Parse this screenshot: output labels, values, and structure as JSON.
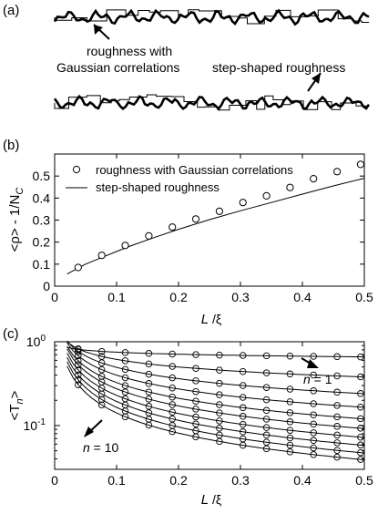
{
  "panels": {
    "a": {
      "tag": "(a)",
      "label_gaussian": [
        "roughness with",
        "Gaussian correlations"
      ],
      "label_step": "step-shaped roughness"
    },
    "b": {
      "tag": "(b)",
      "xlabel_main": "L",
      "xlabel_rest": " /ξ",
      "ylabel_main": "<ρ> - 1/N",
      "ylabel_sub": "C",
      "legend": [
        "roughness with Gaussian correlations",
        "step-shaped roughness"
      ]
    },
    "c": {
      "tag": "(c)",
      "xlabel_main": "L",
      "xlabel_rest": " /ξ",
      "ylabel_main": "<T",
      "ylabel_sub": "n",
      "ylabel_end": ">",
      "annot_n1_var": "n",
      "annot_n1_val": " = 1",
      "annot_n10_var": "n",
      "annot_n10_val": " = 10"
    }
  },
  "chart_data": [
    {
      "type": "scatter",
      "panel": "b",
      "xlim": [
        0,
        0.5
      ],
      "ylim": [
        0,
        0.6
      ],
      "xticks": [
        "0",
        "0.1",
        "0.2",
        "0.3",
        "0.4",
        "0.5"
      ],
      "yticks": [
        "0",
        "0.1",
        "0.2",
        "0.3",
        "0.4",
        "0.5"
      ],
      "series": [
        {
          "name": "roughness with Gaussian correlations",
          "style": "open-circles",
          "x": [
            0.038,
            0.076,
            0.114,
            0.152,
            0.19,
            0.228,
            0.266,
            0.304,
            0.342,
            0.38,
            0.418,
            0.456,
            0.494
          ],
          "y": [
            0.085,
            0.14,
            0.185,
            0.228,
            0.268,
            0.305,
            0.34,
            0.38,
            0.41,
            0.448,
            0.488,
            0.52,
            0.553
          ]
        },
        {
          "name": "step-shaped roughness",
          "style": "line",
          "x": [
            0.02,
            0.05,
            0.08,
            0.12,
            0.16,
            0.2,
            0.25,
            0.3,
            0.35,
            0.4,
            0.45,
            0.5
          ],
          "y": [
            0.055,
            0.1,
            0.135,
            0.18,
            0.22,
            0.258,
            0.302,
            0.342,
            0.38,
            0.418,
            0.455,
            0.49
          ]
        }
      ]
    },
    {
      "type": "line",
      "panel": "c",
      "yscale": "log",
      "xlim": [
        0,
        0.5
      ],
      "ylim": [
        0.03,
        1
      ],
      "xticks": [
        "0",
        "0.1",
        "0.2",
        "0.3",
        "0.4",
        "0.5"
      ],
      "yticks": [
        {
          "value": 1,
          "base": "10",
          "exp": "0"
        },
        {
          "value": 0.1,
          "base": "10",
          "exp": "-1"
        }
      ],
      "marker_x": [
        0.038,
        0.076,
        0.114,
        0.152,
        0.19,
        0.228,
        0.266,
        0.304,
        0.342,
        0.38,
        0.418,
        0.456,
        0.494
      ],
      "curves": [
        {
          "n": 1,
          "end": 0.66,
          "gamma": 0.08
        },
        {
          "n": 2,
          "end": 0.38,
          "gamma": 0.3
        },
        {
          "n": 3,
          "end": 0.24,
          "gamma": 0.45
        },
        {
          "n": 4,
          "end": 0.165,
          "gamma": 0.55
        },
        {
          "n": 5,
          "end": 0.12,
          "gamma": 0.62
        },
        {
          "n": 6,
          "end": 0.092,
          "gamma": 0.68
        },
        {
          "n": 7,
          "end": 0.072,
          "gamma": 0.72
        },
        {
          "n": 8,
          "end": 0.058,
          "gamma": 0.75
        },
        {
          "n": 9,
          "end": 0.047,
          "gamma": 0.78
        },
        {
          "n": 10,
          "end": 0.039,
          "gamma": 0.8
        }
      ]
    }
  ]
}
